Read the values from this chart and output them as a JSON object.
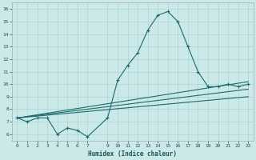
{
  "xlabel": "Humidex (Indice chaleur)",
  "background_color": "#cce9e9",
  "grid_color": "#aad4d4",
  "line_color": "#1a6b6b",
  "xlim": [
    -0.5,
    23.5
  ],
  "ylim": [
    5.5,
    16.5
  ],
  "yticks": [
    6,
    7,
    8,
    9,
    10,
    11,
    12,
    13,
    14,
    15,
    16
  ],
  "xticks": [
    0,
    1,
    2,
    3,
    4,
    5,
    6,
    7,
    9,
    10,
    11,
    12,
    13,
    14,
    15,
    16,
    17,
    18,
    19,
    20,
    21,
    22,
    23
  ],
  "series_main": {
    "x": [
      0,
      1,
      2,
      3,
      4,
      5,
      6,
      7,
      9,
      10,
      11,
      12,
      13,
      14,
      15,
      16,
      17,
      18,
      19,
      20,
      21,
      22,
      23
    ],
    "y": [
      7.3,
      7.0,
      7.3,
      7.3,
      6.0,
      6.5,
      6.3,
      5.8,
      7.3,
      10.3,
      11.5,
      12.5,
      14.3,
      15.5,
      15.8,
      15.0,
      13.0,
      11.0,
      9.8,
      9.8,
      10.0,
      9.8,
      10.0
    ]
  },
  "series_line1": {
    "x": [
      0,
      23
    ],
    "y": [
      7.3,
      10.2
    ]
  },
  "series_line2": {
    "x": [
      0,
      23
    ],
    "y": [
      7.3,
      9.6
    ]
  },
  "series_line3": {
    "x": [
      0,
      23
    ],
    "y": [
      7.3,
      9.0
    ]
  }
}
